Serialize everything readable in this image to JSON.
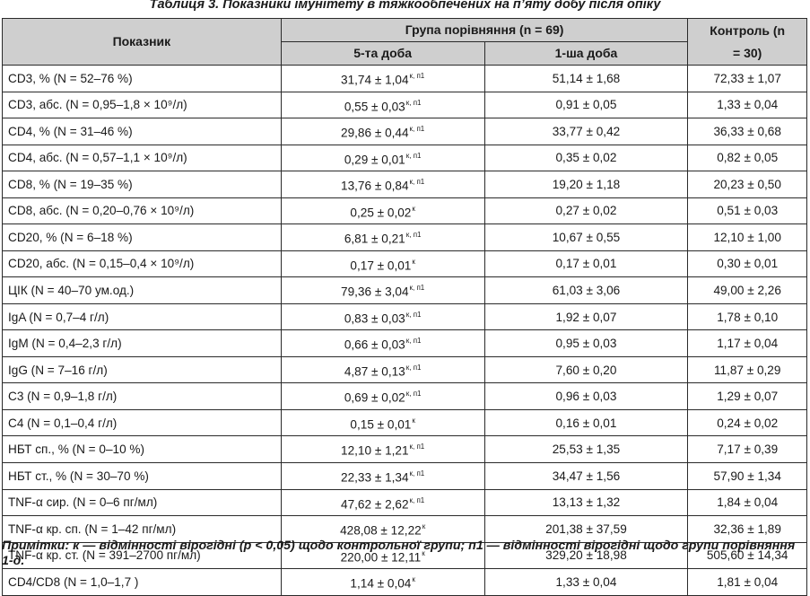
{
  "title": "Таблиця 3. Показники імунітету в тяжкообпечених на п’яту добу після опіку",
  "header": {
    "indicator": "Показник",
    "group": "Група порівняння (n = 69)",
    "day5": "5-та доба",
    "day1": "1-ша доба",
    "control": "Контроль (n = 30)"
  },
  "rows": [
    {
      "indicator": "CD3, % (N = 52–76 %)",
      "day5": "31,74 ± 1,04",
      "day5_mark": "к, п1",
      "day1": "51,14 ± 1,68",
      "control": "72,33 ± 1,07"
    },
    {
      "indicator": "CD3, абс. (N = 0,95–1,8 × 10⁹/л)",
      "day5": "0,55 ± 0,03",
      "day5_mark": "к, п1",
      "day1": "0,91 ± 0,05",
      "control": "1,33 ± 0,04"
    },
    {
      "indicator": "CD4, % (N = 31–46 %)",
      "day5": "29,86 ± 0,44",
      "day5_mark": "к, п1",
      "day1": "33,77 ± 0,42",
      "control": "36,33 ± 0,68"
    },
    {
      "indicator": "CD4, абс. (N = 0,57–1,1 × 10⁹/л)",
      "day5": "0,29 ± 0,01",
      "day5_mark": "к, п1",
      "day1": "0,35 ± 0,02",
      "control": "0,82 ± 0,05"
    },
    {
      "indicator": "CD8, % (N = 19–35 %)",
      "day5": "13,76 ± 0,84",
      "day5_mark": "к, п1",
      "day1": "19,20 ± 1,18",
      "control": "20,23 ± 0,50"
    },
    {
      "indicator": "CD8, абс. (N = 0,20–0,76 × 10⁹/л)",
      "day5": "0,25 ± 0,02",
      "day5_mark": "к",
      "day1": "0,27 ± 0,02",
      "control": "0,51 ± 0,03"
    },
    {
      "indicator": "CD20, % (N = 6–18 %)",
      "day5": "6,81 ± 0,21",
      "day5_mark": "к, п1",
      "day1": "10,67 ± 0,55",
      "control": "12,10 ± 1,00"
    },
    {
      "indicator": "CD20, абс. (N = 0,15–0,4 × 10⁹/л)",
      "day5": "0,17 ± 0,01",
      "day5_mark": "к",
      "day1": "0,17 ± 0,01",
      "control": "0,30 ± 0,01"
    },
    {
      "indicator": "ЦІК (N = 40–70 ум.од.)",
      "day5": "79,36 ± 3,04",
      "day5_mark": "к, п1",
      "day1": "61,03 ± 3,06",
      "control": "49,00 ± 2,26"
    },
    {
      "indicator": "IgA (N = 0,7–4 г/л)",
      "day5": "0,83 ± 0,03",
      "day5_mark": "к, п1",
      "day1": "1,92 ± 0,07",
      "control": "1,78 ± 0,10"
    },
    {
      "indicator": "IgM (N = 0,4–2,3 г/л)",
      "day5": "0,66 ± 0,03",
      "day5_mark": "к, п1",
      "day1": "0,95 ± 0,03",
      "control": "1,17 ± 0,04"
    },
    {
      "indicator": "IgG (N = 7–16 г/л)",
      "day5": "4,87 ± 0,13",
      "day5_mark": "к, п1",
      "day1": "7,60 ± 0,20",
      "control": "11,87 ± 0,29"
    },
    {
      "indicator": "С3 (N = 0,9–1,8 г/л)",
      "day5": "0,69 ± 0,02",
      "day5_mark": "к, п1",
      "day1": "0,96 ± 0,03",
      "control": "1,29 ± 0,07"
    },
    {
      "indicator": "С4 (N = 0,1–0,4 г/л)",
      "day5": "0,15 ± 0,01",
      "day5_mark": "к",
      "day1": "0,16 ± 0,01",
      "control": "0,24 ± 0,02"
    },
    {
      "indicator": "НБТ сп., % (N = 0–10 %)",
      "day5": "12,10 ± 1,21",
      "day5_mark": "к, п1",
      "day1": "25,53 ± 1,35",
      "control": "7,17 ± 0,39"
    },
    {
      "indicator": "НБТ ст., % (N = 30–70 %)",
      "day5": "22,33 ± 1,34",
      "day5_mark": "к, п1",
      "day1": "34,47 ± 1,56",
      "control": "57,90 ± 1,34"
    },
    {
      "indicator": "TNF-α сир. (N = 0–6 пг/мл)",
      "day5": "47,62 ± 2,62",
      "day5_mark": "к, п1",
      "day1": "13,13 ± 1,32",
      "control": "1,84 ± 0,04"
    },
    {
      "indicator": "TNF-α кр. сп. (N = 1–42 пг/мл)",
      "day5": "428,08 ± 12,22",
      "day5_mark": "к",
      "day1": "201,38 ± 37,59",
      "control": "32,36 ± 1,89"
    },
    {
      "indicator": "TNF-α кр. ст. (N = 391–2700 пг/мл)",
      "day5": "220,00 ± 12,11",
      "day5_mark": "к",
      "day1": "329,20 ± 18,98",
      "control": "505,60 ± 14,34"
    },
    {
      "indicator": "CD4/CD8 (N = 1,0–1,7 )",
      "day5": "1,14 ± 0,04",
      "day5_mark": "к",
      "day1": "1,33 ± 0,04",
      "control": "1,81 ± 0,04"
    }
  ],
  "note": "Примітки: к — відмінності вірогідні (р < 0,05) щодо контрольної групи; п1 — відмінності вірогідні щодо групи порівняння 1-д."
}
